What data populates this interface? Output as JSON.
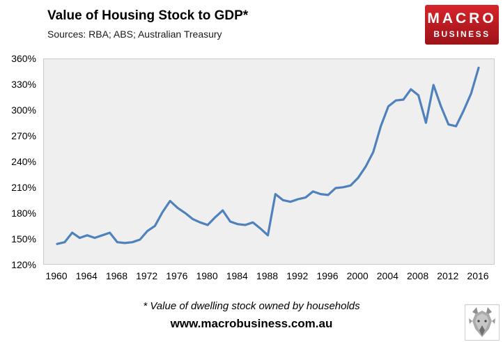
{
  "header": {
    "title": "Value of Housing Stock to GDP*",
    "subtitle": "Sources: RBA; ABS; Australian Treasury"
  },
  "logo": {
    "line1": "MACRO",
    "line2": "BUSINESS"
  },
  "chart_data": {
    "type": "line",
    "title": "Value of Housing Stock to GDP*",
    "xlabel": "",
    "ylabel": "",
    "ylim": [
      120,
      360
    ],
    "grid": false,
    "legend": null,
    "line_color": "#4f81bd",
    "plot_background": "#efefef",
    "yticks": [
      120,
      150,
      180,
      210,
      240,
      270,
      300,
      330,
      360
    ],
    "ytick_labels": [
      "120%",
      "150%",
      "180%",
      "210%",
      "240%",
      "270%",
      "300%",
      "330%",
      "360%"
    ],
    "xticks": [
      1960,
      1964,
      1968,
      1972,
      1976,
      1980,
      1984,
      1988,
      1992,
      1996,
      2000,
      2004,
      2008,
      2012,
      2016
    ],
    "years": [
      1960,
      1961,
      1962,
      1963,
      1964,
      1965,
      1966,
      1967,
      1968,
      1969,
      1970,
      1971,
      1972,
      1973,
      1974,
      1975,
      1976,
      1977,
      1978,
      1979,
      1980,
      1981,
      1982,
      1983,
      1984,
      1985,
      1986,
      1987,
      1988,
      1989,
      1990,
      1991,
      1992,
      1993,
      1994,
      1995,
      1996,
      1997,
      1998,
      1999,
      2000,
      2001,
      2002,
      2003,
      2004,
      2005,
      2006,
      2007,
      2008,
      2009,
      2010,
      2011,
      2012,
      2013,
      2014,
      2015,
      2016
    ],
    "values": [
      145,
      147,
      158,
      152,
      155,
      152,
      155,
      158,
      147,
      146,
      147,
      150,
      160,
      166,
      182,
      195,
      187,
      181,
      174,
      170,
      167,
      176,
      184,
      171,
      168,
      167,
      170,
      163,
      155,
      203,
      196,
      194,
      197,
      199,
      206,
      203,
      202,
      210,
      211,
      213,
      222,
      235,
      252,
      282,
      305,
      312,
      313,
      325,
      318,
      286,
      330,
      305,
      284,
      282,
      300,
      320,
      350
    ]
  },
  "footer": {
    "note": "* Value of dwelling stock owned by households",
    "website": "www.macrobusiness.com.au"
  }
}
